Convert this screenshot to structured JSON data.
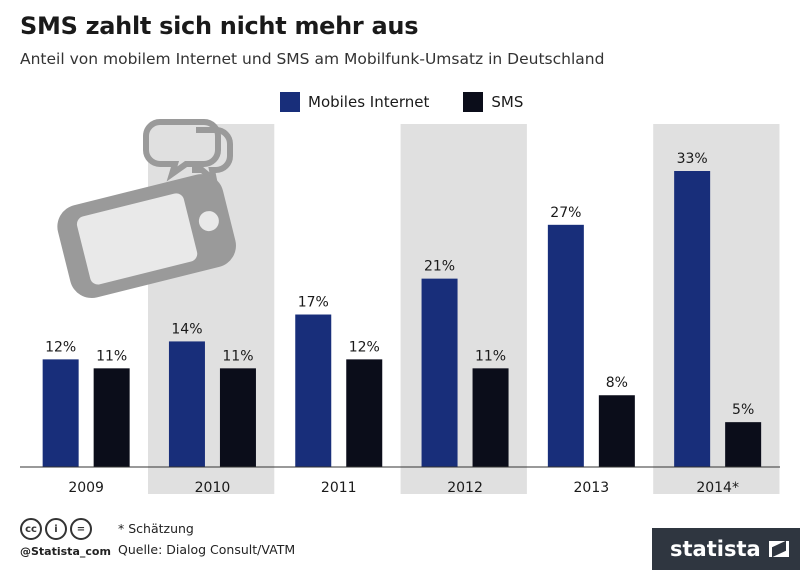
{
  "header": {
    "title": "SMS zahlt sich nicht mehr aus",
    "subtitle": "Anteil von mobilem Internet und SMS am Mobilfunk-Umsatz in Deutschland"
  },
  "legend": {
    "internet_label": "Mobiles Internet",
    "sms_label": "SMS"
  },
  "colors": {
    "internet": "#182e7a",
    "sms": "#0b0d1a",
    "band": "#e0e0e0",
    "icon": "#9a9a9a"
  },
  "chart_data": {
    "type": "bar",
    "categories": [
      "2009",
      "2010",
      "2011",
      "2012",
      "2013",
      "2014*"
    ],
    "series": [
      {
        "name": "Mobiles Internet",
        "values": [
          12,
          14,
          17,
          21,
          27,
          33
        ]
      },
      {
        "name": "SMS",
        "values": [
          11,
          11,
          12,
          11,
          8,
          5
        ]
      }
    ],
    "value_labels": {
      "Mobiles Internet": [
        "12%",
        "14%",
        "17%",
        "21%",
        "27%",
        "33%"
      ],
      "SMS": [
        "11%",
        "11%",
        "12%",
        "11%",
        "8%",
        "5%"
      ]
    },
    "ylim": [
      0,
      35
    ],
    "title": "SMS zahlt sich nicht mehr aus",
    "subtitle": "Anteil von mobilem Internet und SMS am Mobilfunk-Umsatz in Deutschland",
    "legend_position": "top",
    "shaded_categories": [
      "2010",
      "2012",
      "2014*"
    ],
    "grid": false
  },
  "footer": {
    "note": "* Schätzung",
    "source": "Quelle: Dialog Consult/VATM",
    "handle": "@Statista_com",
    "brand": "statista",
    "license_icons": [
      "cc",
      "i",
      "="
    ]
  }
}
